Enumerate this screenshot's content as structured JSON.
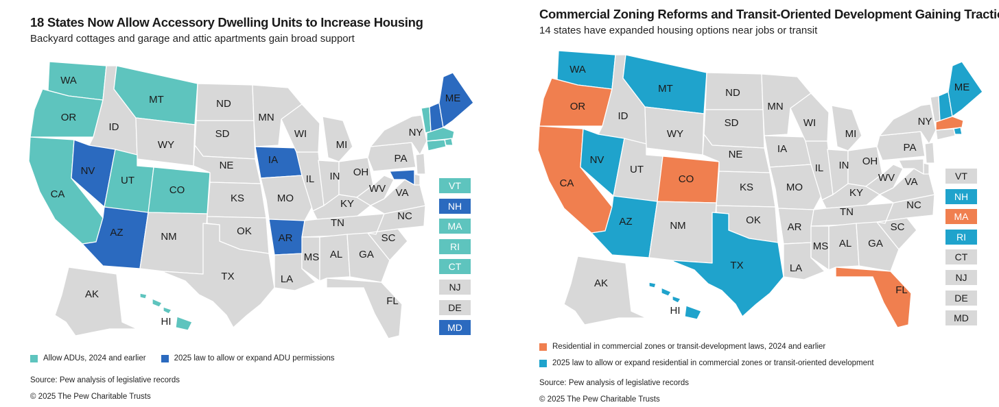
{
  "colors": {
    "teal": "#5ec4be",
    "blue": "#2b6abf",
    "orange": "#f07f4f",
    "cyan": "#1fa3cc",
    "gray": "#d8d8d8"
  },
  "left": {
    "title": "18 States Now Allow Accessory Dwelling Units to Increase Housing",
    "subtitle": "Backyard cottages and garage and attic apartments gain broad support",
    "legend": [
      {
        "label": "Allow ADUs, 2024 and earlier",
        "color": "#5ec4be"
      },
      {
        "label": "2025 law to allow or expand ADU permissions",
        "color": "#2b6abf"
      }
    ],
    "source": "Source: Pew analysis of legislative records",
    "copyright": "© 2025 The Pew Charitable Trusts",
    "states": {
      "WA": "#5ec4be",
      "OR": "#5ec4be",
      "CA": "#5ec4be",
      "MT": "#5ec4be",
      "UT": "#5ec4be",
      "CO": "#5ec4be",
      "VT": "#5ec4be",
      "MA": "#5ec4be",
      "RI": "#5ec4be",
      "CT": "#5ec4be",
      "HI": "#5ec4be",
      "NV": "#2b6abf",
      "AZ": "#2b6abf",
      "IA": "#2b6abf",
      "AR": "#2b6abf",
      "ME": "#2b6abf",
      "NH": "#2b6abf",
      "MD": "#2b6abf"
    },
    "side": [
      {
        "label": "VT",
        "color": "#5ec4be"
      },
      {
        "label": "NH",
        "color": "#2b6abf"
      },
      {
        "label": "MA",
        "color": "#5ec4be"
      },
      {
        "label": "RI",
        "color": "#5ec4be"
      },
      {
        "label": "CT",
        "color": "#5ec4be"
      },
      {
        "label": "NJ",
        "color": "#d8d8d8"
      },
      {
        "label": "DE",
        "color": "#d8d8d8"
      },
      {
        "label": "MD",
        "color": "#2b6abf"
      }
    ]
  },
  "right": {
    "title": "Commercial Zoning Reforms and Transit-Oriented Development Gaining Traction",
    "subtitle": "14 states have expanded housing options near jobs or transit",
    "legend": [
      {
        "label": "Residential in commercial zones or transit-development laws, 2024 and earlier",
        "color": "#f07f4f"
      },
      {
        "label": "2025 law to allow or expand residential in commercial zones or transit-oriented development",
        "color": "#1fa3cc"
      }
    ],
    "source": "Source: Pew analysis of legislative records",
    "copyright": "© 2025 The Pew Charitable Trusts",
    "states": {
      "OR": "#f07f4f",
      "CA": "#f07f4f",
      "CO": "#f07f4f",
      "MA": "#f07f4f",
      "FL": "#f07f4f",
      "WA": "#1fa3cc",
      "MT": "#1fa3cc",
      "NV": "#1fa3cc",
      "AZ": "#1fa3cc",
      "TX": "#1fa3cc",
      "ME": "#1fa3cc",
      "NH": "#1fa3cc",
      "RI": "#1fa3cc",
      "HI": "#1fa3cc"
    },
    "side": [
      {
        "label": "VT",
        "color": "#d8d8d8"
      },
      {
        "label": "NH",
        "color": "#1fa3cc"
      },
      {
        "label": "MA",
        "color": "#f07f4f"
      },
      {
        "label": "RI",
        "color": "#1fa3cc"
      },
      {
        "label": "CT",
        "color": "#d8d8d8"
      },
      {
        "label": "NJ",
        "color": "#d8d8d8"
      },
      {
        "label": "DE",
        "color": "#d8d8d8"
      },
      {
        "label": "MD",
        "color": "#d8d8d8"
      }
    ]
  },
  "state_labels": {
    "WA": "WA",
    "OR": "OR",
    "CA": "CA",
    "ID": "ID",
    "NV": "NV",
    "MT": "MT",
    "WY": "WY",
    "UT": "UT",
    "CO": "CO",
    "AZ": "AZ",
    "NM": "NM",
    "ND": "ND",
    "SD": "SD",
    "NE": "NE",
    "KS": "KS",
    "OK": "OK",
    "TX": "TX",
    "MN": "MN",
    "IA": "IA",
    "MO": "MO",
    "AR": "AR",
    "LA": "LA",
    "WI": "WI",
    "IL": "IL",
    "MI": "MI",
    "IN": "IN",
    "OH": "OH",
    "KY": "KY",
    "TN": "TN",
    "MS": "MS",
    "AL": "AL",
    "GA": "GA",
    "FL": "FL",
    "SC": "SC",
    "NC": "NC",
    "VA": "VA",
    "WV": "WV",
    "PA": "PA",
    "NY": "NY",
    "ME": "ME",
    "AK": "AK",
    "HI": "HI"
  }
}
